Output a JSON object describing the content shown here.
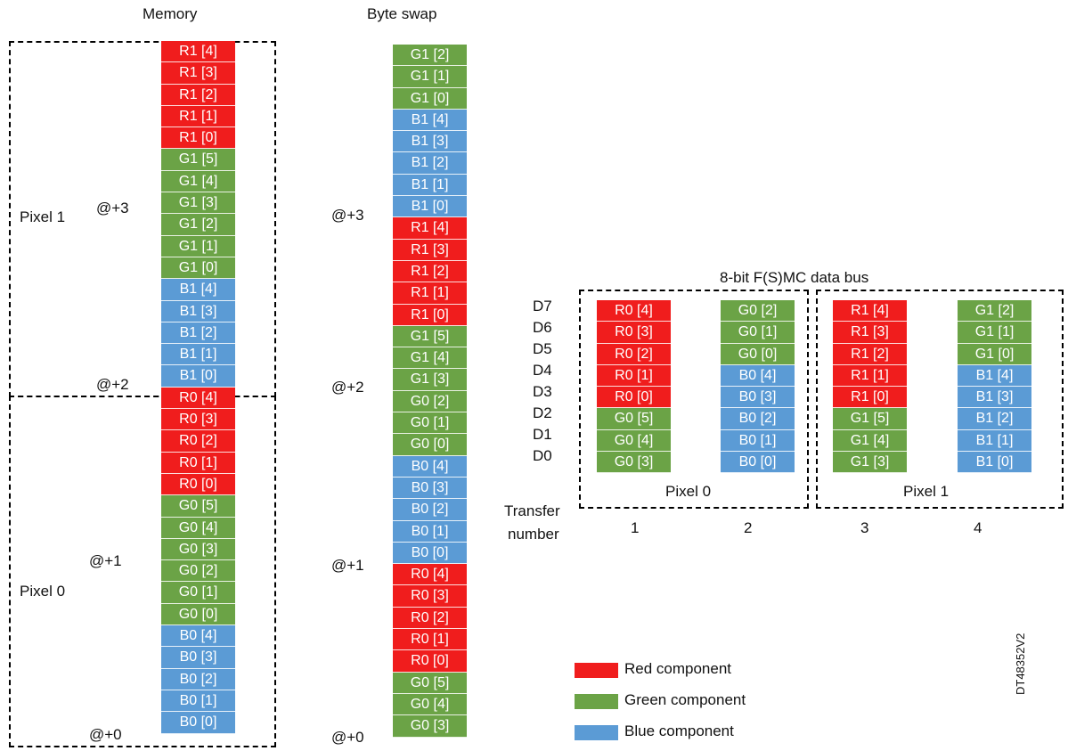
{
  "headers": {
    "memory": "Memory",
    "byteswap": "Byte swap",
    "bus": "8-bit F(S)MC data bus"
  },
  "colors": {
    "red": "#f01d1d",
    "green": "#6ba346",
    "blue": "#5b9bd5"
  },
  "memory_column": [
    {
      "t": "R1 [4]",
      "c": "r"
    },
    {
      "t": "R1 [3]",
      "c": "r"
    },
    {
      "t": "R1 [2]",
      "c": "r"
    },
    {
      "t": "R1 [1]",
      "c": "r"
    },
    {
      "t": "R1 [0]",
      "c": "r"
    },
    {
      "t": "G1 [5]",
      "c": "g"
    },
    {
      "t": "G1 [4]",
      "c": "g"
    },
    {
      "t": "G1 [3]",
      "c": "g"
    },
    {
      "t": "G1 [2]",
      "c": "g"
    },
    {
      "t": "G1 [1]",
      "c": "g"
    },
    {
      "t": "G1 [0]",
      "c": "g"
    },
    {
      "t": "B1 [4]",
      "c": "b"
    },
    {
      "t": "B1 [3]",
      "c": "b"
    },
    {
      "t": "B1 [2]",
      "c": "b"
    },
    {
      "t": "B1 [1]",
      "c": "b"
    },
    {
      "t": "B1 [0]",
      "c": "b"
    },
    {
      "t": "R0 [4]",
      "c": "r"
    },
    {
      "t": "R0 [3]",
      "c": "r"
    },
    {
      "t": "R0 [2]",
      "c": "r"
    },
    {
      "t": "R0 [1]",
      "c": "r"
    },
    {
      "t": "R0 [0]",
      "c": "r"
    },
    {
      "t": "G0 [5]",
      "c": "g"
    },
    {
      "t": "G0 [4]",
      "c": "g"
    },
    {
      "t": "G0 [3]",
      "c": "g"
    },
    {
      "t": "G0 [2]",
      "c": "g"
    },
    {
      "t": "G0 [1]",
      "c": "g"
    },
    {
      "t": "G0 [0]",
      "c": "g"
    },
    {
      "t": "B0 [4]",
      "c": "b"
    },
    {
      "t": "B0 [3]",
      "c": "b"
    },
    {
      "t": "B0 [2]",
      "c": "b"
    },
    {
      "t": "B0 [1]",
      "c": "b"
    },
    {
      "t": "B0 [0]",
      "c": "b"
    }
  ],
  "byteswap_column": [
    {
      "t": "G1 [2]",
      "c": "g"
    },
    {
      "t": "G1 [1]",
      "c": "g"
    },
    {
      "t": "G1 [0]",
      "c": "g"
    },
    {
      "t": "B1 [4]",
      "c": "b"
    },
    {
      "t": "B1 [3]",
      "c": "b"
    },
    {
      "t": "B1 [2]",
      "c": "b"
    },
    {
      "t": "B1 [1]",
      "c": "b"
    },
    {
      "t": "B1 [0]",
      "c": "b"
    },
    {
      "t": "R1 [4]",
      "c": "r"
    },
    {
      "t": "R1 [3]",
      "c": "r"
    },
    {
      "t": "R1 [2]",
      "c": "r"
    },
    {
      "t": "R1 [1]",
      "c": "r"
    },
    {
      "t": "R1 [0]",
      "c": "r"
    },
    {
      "t": "G1 [5]",
      "c": "g"
    },
    {
      "t": "G1 [4]",
      "c": "g"
    },
    {
      "t": "G1 [3]",
      "c": "g"
    },
    {
      "t": "G0 [2]",
      "c": "g"
    },
    {
      "t": "G0 [1]",
      "c": "g"
    },
    {
      "t": "G0 [0]",
      "c": "g"
    },
    {
      "t": "B0 [4]",
      "c": "b"
    },
    {
      "t": "B0 [3]",
      "c": "b"
    },
    {
      "t": "B0 [2]",
      "c": "b"
    },
    {
      "t": "B0 [1]",
      "c": "b"
    },
    {
      "t": "B0 [0]",
      "c": "b"
    },
    {
      "t": "R0 [4]",
      "c": "r"
    },
    {
      "t": "R0 [3]",
      "c": "r"
    },
    {
      "t": "R0 [2]",
      "c": "r"
    },
    {
      "t": "R0 [1]",
      "c": "r"
    },
    {
      "t": "R0 [0]",
      "c": "r"
    },
    {
      "t": "G0 [5]",
      "c": "g"
    },
    {
      "t": "G0 [4]",
      "c": "g"
    },
    {
      "t": "G0 [3]",
      "c": "g"
    }
  ],
  "addresses": {
    "a3": "@+3",
    "a2": "@+2",
    "a1": "@+1",
    "a0": "@+0"
  },
  "pixel_labels": {
    "pixel1": "Pixel 1",
    "pixel0": "Pixel 0"
  },
  "bus_lines": [
    "D7",
    "D6",
    "D5",
    "D4",
    "D3",
    "D2",
    "D1",
    "D0"
  ],
  "transfer_label": {
    "line1": "Transfer",
    "line2": "number"
  },
  "transfers": [
    {
      "number": "1",
      "cells": [
        {
          "t": "R0 [4]",
          "c": "r"
        },
        {
          "t": "R0 [3]",
          "c": "r"
        },
        {
          "t": "R0 [2]",
          "c": "r"
        },
        {
          "t": "R0 [1]",
          "c": "r"
        },
        {
          "t": "R0 [0]",
          "c": "r"
        },
        {
          "t": "G0 [5]",
          "c": "g"
        },
        {
          "t": "G0 [4]",
          "c": "g"
        },
        {
          "t": "G0 [3]",
          "c": "g"
        }
      ]
    },
    {
      "number": "2",
      "cells": [
        {
          "t": "G0 [2]",
          "c": "g"
        },
        {
          "t": "G0 [1]",
          "c": "g"
        },
        {
          "t": "G0 [0]",
          "c": "g"
        },
        {
          "t": "B0 [4]",
          "c": "b"
        },
        {
          "t": "B0 [3]",
          "c": "b"
        },
        {
          "t": "B0 [2]",
          "c": "b"
        },
        {
          "t": "B0 [1]",
          "c": "b"
        },
        {
          "t": "B0 [0]",
          "c": "b"
        }
      ]
    },
    {
      "number": "3",
      "cells": [
        {
          "t": "R1 [4]",
          "c": "r"
        },
        {
          "t": "R1 [3]",
          "c": "r"
        },
        {
          "t": "R1 [2]",
          "c": "r"
        },
        {
          "t": "R1 [1]",
          "c": "r"
        },
        {
          "t": "R1 [0]",
          "c": "r"
        },
        {
          "t": "G1 [5]",
          "c": "g"
        },
        {
          "t": "G1 [4]",
          "c": "g"
        },
        {
          "t": "G1 [3]",
          "c": "g"
        }
      ]
    },
    {
      "number": "4",
      "cells": [
        {
          "t": "G1 [2]",
          "c": "g"
        },
        {
          "t": "G1 [1]",
          "c": "g"
        },
        {
          "t": "G1 [0]",
          "c": "g"
        },
        {
          "t": "B1 [4]",
          "c": "b"
        },
        {
          "t": "B1 [3]",
          "c": "b"
        },
        {
          "t": "B1 [2]",
          "c": "b"
        },
        {
          "t": "B1 [1]",
          "c": "b"
        },
        {
          "t": "B1 [0]",
          "c": "b"
        }
      ]
    }
  ],
  "legend": [
    {
      "label": "Red component",
      "c": "r"
    },
    {
      "label": "Green component",
      "c": "g"
    },
    {
      "label": "Blue component",
      "c": "b"
    }
  ],
  "figure_id": "DT48352V2"
}
